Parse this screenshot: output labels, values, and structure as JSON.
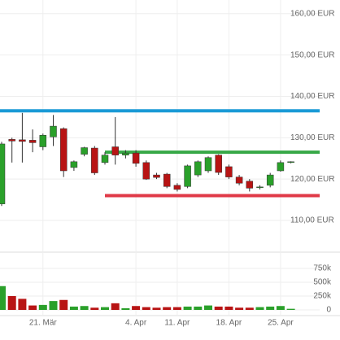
{
  "chart_data": {
    "type": "candlestick",
    "categories": [
      null,
      null,
      null,
      null,
      "21. Mär",
      null,
      null,
      null,
      null,
      null,
      null,
      null,
      null,
      "4. Apr",
      null,
      null,
      null,
      "11. Apr",
      null,
      null,
      null,
      null,
      "18. Apr",
      null,
      null,
      null,
      null,
      "25. Apr",
      null
    ],
    "open": [
      114,
      129.6,
      129.5,
      129.4,
      127.8,
      130.2,
      132.2,
      122.8,
      126,
      127.5,
      124,
      127.8,
      125.8,
      126.3,
      124,
      121,
      121.2,
      118.5,
      118.2,
      121,
      122,
      125.8,
      123,
      120.5,
      119.5,
      118,
      118.5,
      122,
      124
    ],
    "high": [
      129,
      130,
      136,
      132,
      131,
      135.5,
      132.5,
      124.5,
      127.8,
      128,
      126.5,
      135,
      127,
      127,
      124.5,
      121.5,
      121.5,
      119,
      123.5,
      124.5,
      125.5,
      126,
      123.5,
      121,
      120,
      118.5,
      121.5,
      124.5,
      124.3
    ],
    "low": [
      113.5,
      124,
      124,
      126.5,
      127,
      128,
      120.5,
      122,
      125.5,
      121,
      123.5,
      123.5,
      125,
      123,
      119.8,
      120,
      117.8,
      117,
      117.8,
      120.5,
      121.5,
      121,
      120,
      118.5,
      117,
      117.5,
      118,
      121.8,
      123.8
    ],
    "close": [
      128.5,
      129.2,
      129.1,
      128.8,
      130.6,
      132.8,
      122,
      124.2,
      127.6,
      121.5,
      125.8,
      125.8,
      126.3,
      123.8,
      120,
      120.4,
      118.2,
      117.5,
      123.2,
      124.2,
      125.2,
      121.6,
      120.5,
      119,
      117.8,
      118.1,
      121,
      124,
      124.2
    ],
    "volume": [
      430000,
      250000,
      200000,
      80000,
      90000,
      160000,
      180000,
      60000,
      70000,
      40000,
      50000,
      120000,
      30000,
      70000,
      50000,
      40000,
      50000,
      50000,
      60000,
      60000,
      80000,
      60000,
      60000,
      40000,
      40000,
      50000,
      60000,
      70000,
      20000
    ],
    "up_color": "#2aa02a",
    "down_color": "#b81414",
    "ylim": [
      104.3,
      163.3
    ],
    "yticks": [
      {
        "value": 110,
        "label": "110,00 EUR"
      },
      {
        "value": 120,
        "label": "120,00 EUR"
      },
      {
        "value": 130,
        "label": "130,00 EUR"
      },
      {
        "value": 140,
        "label": "140,00 EUR"
      },
      {
        "value": 150,
        "label": "150,00 EUR"
      },
      {
        "value": 160,
        "label": "160,00 EUR"
      }
    ],
    "volume_ylim": [
      0,
      970000
    ],
    "volume_ticks": [
      0,
      {
        "value": 250000,
        "label": "250k"
      },
      {
        "value": 500000,
        "label": "500k"
      },
      {
        "value": 750000,
        "label": "750k"
      }
    ],
    "levels": [
      {
        "value": 136.5,
        "color": "#1a9ad6",
        "start_index": 0
      },
      {
        "value": 126.5,
        "color": "#36a846",
        "start_index": 10
      },
      {
        "value": 116,
        "color": "#e03a48",
        "start_index": 10
      }
    ],
    "grid": true
  }
}
